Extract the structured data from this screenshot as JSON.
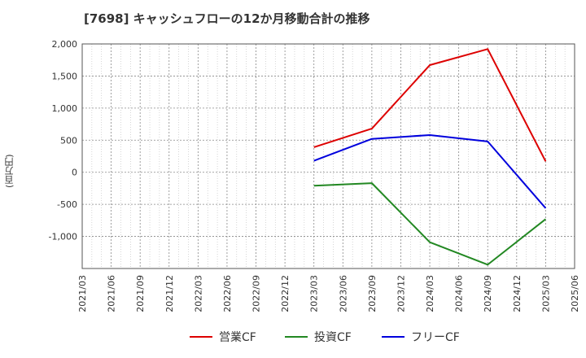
{
  "chart_data": {
    "type": "line",
    "title": "[7698]  キャッシュフローの12か月移動合計の推移",
    "ylabel": "(百万円)",
    "xlabel": "",
    "ylim": [
      -1500,
      2000
    ],
    "yticks": [
      2000,
      1500,
      1000,
      500,
      0,
      -500,
      -1000
    ],
    "ytick_labels": [
      "2,000",
      "1,500",
      "1,000",
      "500",
      "0",
      "-500",
      "-1,000"
    ],
    "x": [
      "2021/03",
      "2021/06",
      "2021/09",
      "2021/12",
      "2022/03",
      "2022/06",
      "2022/09",
      "2022/12",
      "2023/03",
      "2023/06",
      "2023/09",
      "2023/12",
      "2024/03",
      "2024/06",
      "2024/09",
      "2024/12",
      "2025/03",
      "2025/06"
    ],
    "grid": true,
    "legend_position": "bottom",
    "series": [
      {
        "name": "営業CF",
        "color": "#dd0000",
        "points": [
          [
            "2023/03",
            390
          ],
          [
            "2023/09",
            680
          ],
          [
            "2024/03",
            1670
          ],
          [
            "2024/09",
            1920
          ],
          [
            "2025/03",
            170
          ]
        ]
      },
      {
        "name": "投資CF",
        "color": "#228822",
        "points": [
          [
            "2023/03",
            -210
          ],
          [
            "2023/09",
            -170
          ],
          [
            "2024/03",
            -1090
          ],
          [
            "2024/09",
            -1440
          ],
          [
            "2025/03",
            -730
          ]
        ]
      },
      {
        "name": "フリーCF",
        "color": "#0000dd",
        "points": [
          [
            "2023/03",
            180
          ],
          [
            "2023/09",
            520
          ],
          [
            "2024/03",
            580
          ],
          [
            "2024/09",
            480
          ],
          [
            "2025/03",
            -560
          ]
        ]
      }
    ]
  }
}
